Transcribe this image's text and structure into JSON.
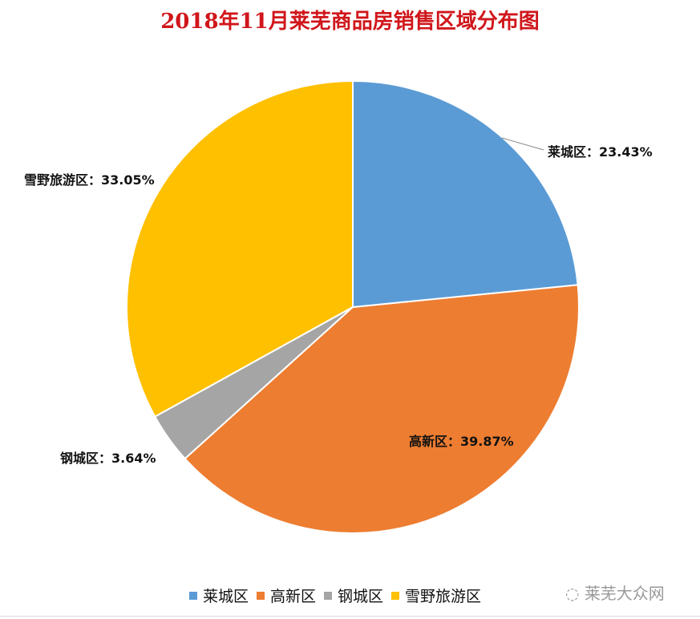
{
  "chart_data": {
    "type": "pie",
    "title": "2018年11月莱芜商品房销售区域分布图",
    "start_angle": "12 o'clock",
    "direction": "clockwise",
    "slices": [
      {
        "name": "莱城区",
        "value": 23.43,
        "label": "莱城区：23.43%",
        "color": "#5b9bd5"
      },
      {
        "name": "高新区",
        "value": 39.87,
        "label": "高新区：39.87%",
        "color": "#ed7d31"
      },
      {
        "name": "钢城区",
        "value": 3.64,
        "label": "钢城区：3.64%",
        "color": "#a5a5a5"
      },
      {
        "name": "雪野旅游区",
        "value": 33.05,
        "label": "雪野旅游区：33.05%",
        "color": "#ffc000"
      }
    ],
    "legend_position": "bottom"
  },
  "watermark": "莱芜大众网"
}
